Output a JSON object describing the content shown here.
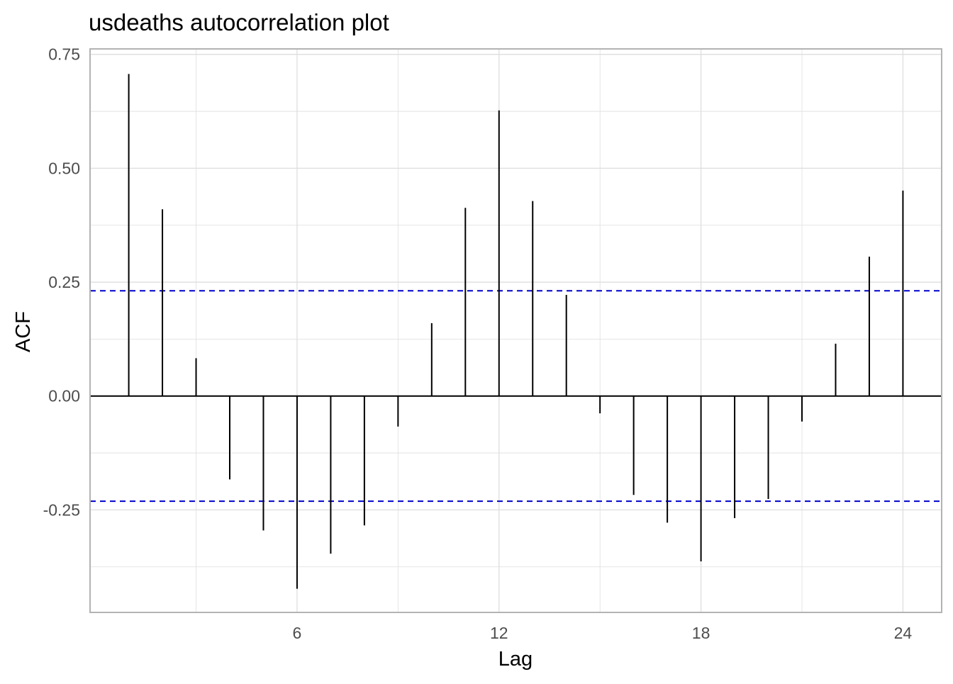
{
  "chart_data": {
    "type": "bar",
    "title": "usdeaths autocorrelation plot",
    "xlabel": "Lag",
    "ylabel": "ACF",
    "x": [
      1,
      2,
      3,
      4,
      5,
      6,
      7,
      8,
      9,
      10,
      11,
      12,
      13,
      14,
      15,
      16,
      17,
      18,
      19,
      20,
      21,
      22,
      23,
      24
    ],
    "values": [
      0.707,
      0.41,
      0.083,
      -0.183,
      -0.295,
      -0.423,
      -0.346,
      -0.284,
      -0.067,
      0.16,
      0.413,
      0.627,
      0.428,
      0.222,
      -0.038,
      -0.217,
      -0.278,
      -0.363,
      -0.268,
      -0.226,
      -0.056,
      0.115,
      0.306,
      0.451
    ],
    "xlim": [
      -0.15,
      25.15
    ],
    "ylim": [
      -0.475,
      0.762
    ],
    "x_ticks": [
      6,
      12,
      18,
      24
    ],
    "y_ticks": [
      0.75,
      0.5,
      0.25,
      0.0,
      -0.25
    ],
    "y_tick_labels": [
      "0.75",
      "0.50",
      "0.25",
      "0.00",
      "-0.25"
    ],
    "confidence_bound": 0.231,
    "grid": true,
    "legend": "none",
    "colors": {
      "bars": "#000000",
      "confidence_lines": "#0000cc",
      "grid": "#dedede",
      "panel_border": "#b3b3b3"
    }
  }
}
